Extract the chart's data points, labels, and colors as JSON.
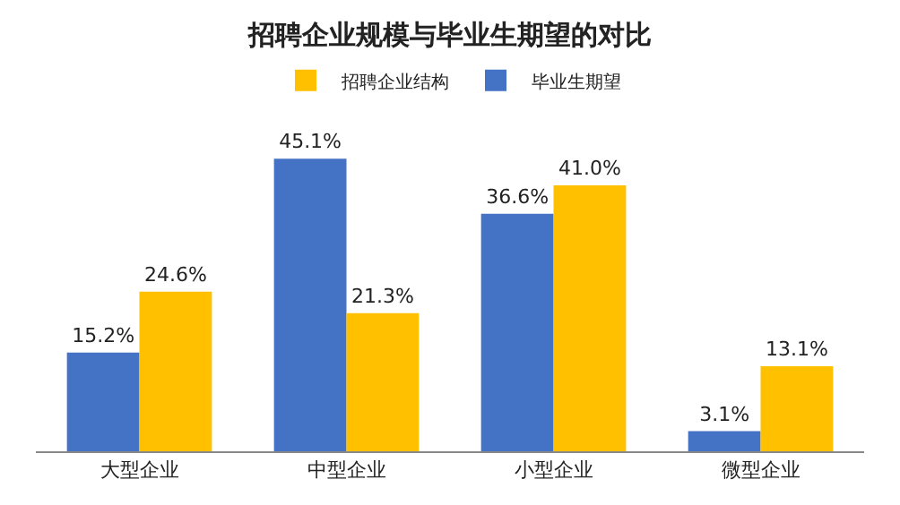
{
  "chart_data": {
    "type": "bar",
    "title": "招聘企业规模与毕业生期望的对比",
    "categories": [
      "大型企业",
      "中型企业",
      "小型企业",
      "微型企业"
    ],
    "series": [
      {
        "name": "毕业生期望",
        "color": "#4472c4",
        "values": [
          15.2,
          45.1,
          36.6,
          3.1
        ],
        "value_labels": [
          "15.2%",
          "45.1%",
          "36.6%",
          "3.1%"
        ]
      },
      {
        "name": "招聘企业结构",
        "color": "#ffc000",
        "values": [
          24.6,
          21.3,
          41.0,
          13.1
        ],
        "value_labels": [
          "24.6%",
          "21.3%",
          "41.0%",
          "13.1%"
        ]
      }
    ],
    "legend": "top"
  }
}
